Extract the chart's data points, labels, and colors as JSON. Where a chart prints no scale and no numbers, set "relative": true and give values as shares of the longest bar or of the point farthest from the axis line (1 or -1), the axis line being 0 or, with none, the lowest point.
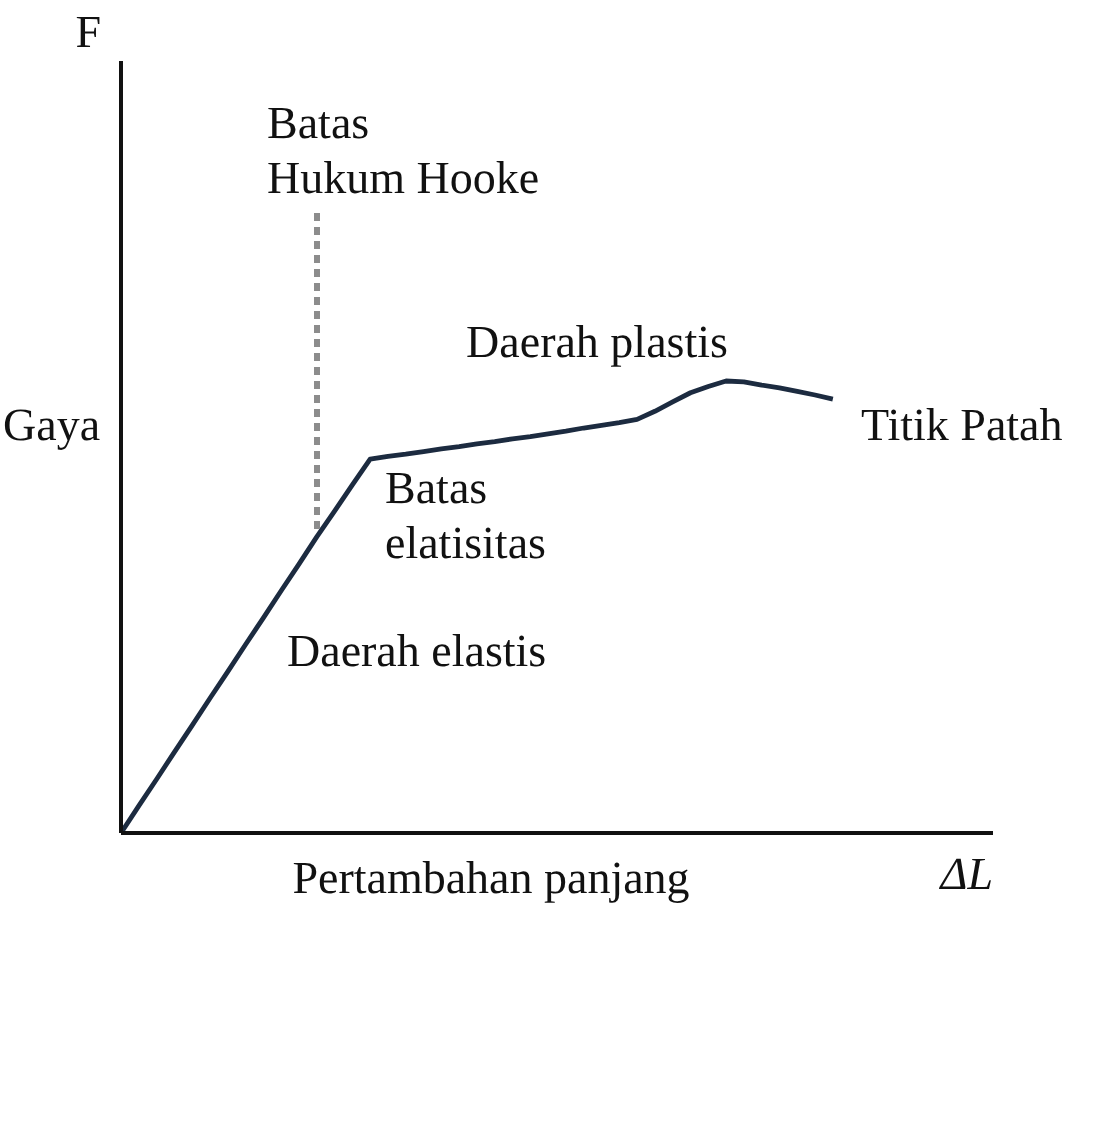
{
  "chart_data": {
    "type": "line",
    "relative": true,
    "xlabel": "Pertambahan panjang",
    "ylabel": "Gaya",
    "categories": [
      null,
      null,
      null,
      null,
      null,
      null,
      null,
      null,
      null,
      null,
      null,
      null,
      null,
      null,
      null,
      null,
      null,
      null,
      null,
      null,
      null,
      null,
      null,
      null,
      null,
      null,
      null,
      null,
      null,
      null,
      null,
      null,
      null,
      null,
      null,
      null,
      null,
      null,
      null,
      null,
      null,
      null,
      null,
      null,
      null,
      null,
      null,
      null,
      null,
      null
    ],
    "series": [
      {
        "color": "#1c2b40",
        "values": [
          0,
          0.06,
          0.119,
          0.179,
          0.238,
          0.298,
          0.357,
          0.417,
          0.476,
          0.536,
          0.595,
          0.655,
          0.712,
          0.77,
          0.827,
          0.833,
          0.838,
          0.844,
          0.85,
          0.855,
          0.861,
          0.866,
          0.872,
          0.877,
          0.883,
          0.889,
          0.896,
          0.902,
          0.908,
          0.915,
          0.933,
          0.954,
          0.974,
          0.988,
          1,
          0.998,
          0.991,
          0.985,
          0.977,
          0.969,
          0.96,
          null,
          null,
          null,
          null,
          null,
          null,
          null,
          null,
          null
        ]
      }
    ],
    "annotations": [
      "Batas\nHukum Hooke",
      "Batas\nelatisitas",
      "Titik Patah",
      "Daerah plastis",
      "Daerah elastis",
      "F",
      "ΔL"
    ]
  }
}
